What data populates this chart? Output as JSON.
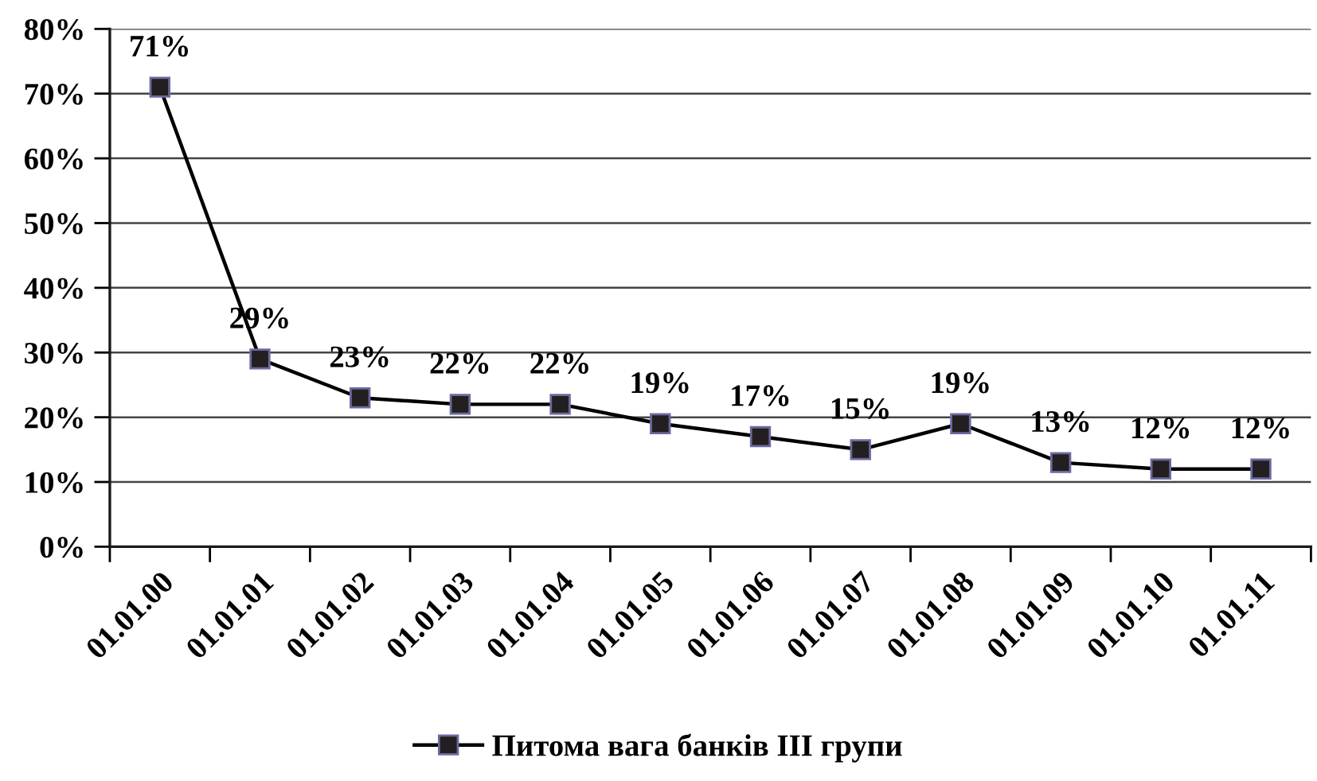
{
  "chart_data": {
    "type": "line",
    "categories": [
      "01.01.00",
      "01.01.01",
      "01.01.02",
      "01.01.03",
      "01.01.04",
      "01.01.05",
      "01.01.06",
      "01.01.07",
      "01.01.08",
      "01.01.09",
      "01.01.10",
      "01.01.11"
    ],
    "series": [
      {
        "name": "Питома вага банків ІІІ групи",
        "color": "#231f20",
        "values": [
          71,
          29,
          23,
          22,
          22,
          19,
          17,
          15,
          19,
          13,
          12,
          12
        ],
        "value_labels": [
          "71%",
          "29%",
          "23%",
          "22%",
          "22%",
          "19%",
          "17%",
          "15%",
          "19%",
          "13%",
          "12%",
          "12%"
        ]
      }
    ],
    "ylim": [
      0,
      80
    ],
    "yticks": [
      {
        "value": 0,
        "label": "0%"
      },
      {
        "value": 10,
        "label": "10%"
      },
      {
        "value": 20,
        "label": "20%"
      },
      {
        "value": 30,
        "label": "30%"
      },
      {
        "value": 40,
        "label": "40%"
      },
      {
        "value": 50,
        "label": "50%"
      },
      {
        "value": 60,
        "label": "60%"
      },
      {
        "value": 70,
        "label": "70%"
      },
      {
        "value": 80,
        "label": "80%"
      }
    ],
    "grid": "y",
    "legend": "bottom",
    "marker": "square",
    "line_style": "solid"
  }
}
